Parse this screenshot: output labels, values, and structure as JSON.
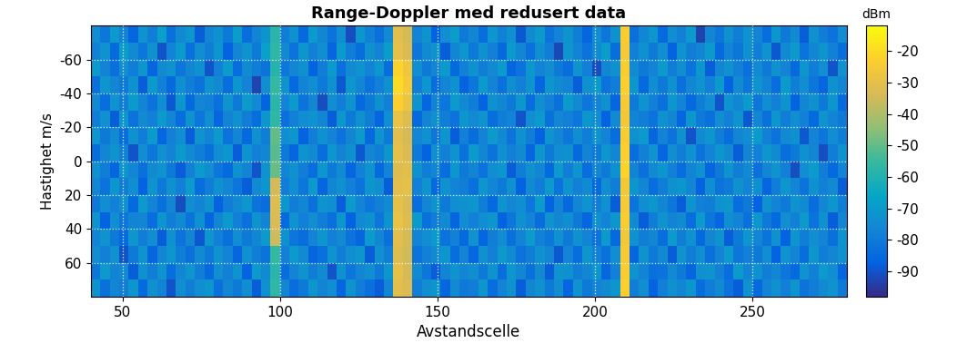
{
  "chart_data": {
    "type": "heatmap",
    "title": "Range-Doppler med redusert data",
    "x_label": "Avstandscelle",
    "y_label": "Hastighet m/s",
    "xlim": [
      40,
      280
    ],
    "xticks": [
      50,
      100,
      150,
      200,
      250
    ],
    "ylim": [
      80,
      -80
    ],
    "yticks": [
      -60,
      -40,
      -20,
      0,
      20,
      40,
      60
    ],
    "grid": true,
    "x_edges": [
      40,
      43,
      46,
      49,
      52,
      55,
      58,
      61,
      64,
      67,
      70,
      73,
      76,
      79,
      82,
      85,
      88,
      91,
      94,
      97,
      100,
      103,
      106,
      109,
      112,
      115,
      118,
      121,
      124,
      127,
      130,
      133,
      136,
      139,
      142,
      145,
      148,
      151,
      154,
      157,
      160,
      163,
      166,
      169,
      172,
      175,
      178,
      181,
      184,
      187,
      190,
      193,
      196,
      199,
      202,
      205,
      208,
      211,
      214,
      217,
      220,
      223,
      226,
      229,
      232,
      235,
      238,
      241,
      244,
      247,
      250,
      253,
      256,
      259,
      262,
      265,
      268,
      271,
      274,
      277,
      280
    ],
    "y_edges": [
      -80,
      -70,
      -60,
      -50,
      -40,
      -30,
      -20,
      -10,
      0,
      10,
      20,
      30,
      40,
      50,
      60,
      70,
      80
    ],
    "colorbar": {
      "label": "dBm",
      "lim": [
        -98,
        -12
      ],
      "ticks": [
        -90,
        -80,
        -70,
        -60,
        -50,
        -40,
        -30,
        -20
      ]
    },
    "cells": [
      [
        -74,
        -81,
        -70,
        -77,
        -86,
        -72,
        -79,
        -68,
        -83,
        -75,
        -71,
        -88,
        -76,
        -73,
        -80,
        -69,
        -84,
        -77,
        -72,
        -58,
        -79,
        -73,
        -85,
        -70,
        -76,
        -82,
        -74,
        -91,
        -71,
        -78,
        -83,
        -75,
        -31,
        -34,
        -77,
        -72,
        -87,
        -74,
        -69,
        -80,
        -76,
        -84,
        -71,
        -78,
        -73,
        -89,
        -75,
        -70,
        -82,
        -77,
        -72,
        -79,
        -86,
        -74,
        -81,
        -73,
        -24,
        -83,
        -76,
        -71,
        -85,
        -74,
        -78,
        -70,
        -93,
        -76,
        -81,
        -73,
        -79,
        -72,
        -77,
        -84,
        -71,
        -80,
        -75,
        -88,
        -73,
        -79,
        -82,
        -74
      ],
      [
        -78,
        -72,
        -85,
        -69,
        -75,
        -81,
        -73,
        -90,
        -77,
        -70,
        -83,
        -74,
        -79,
        -71,
        -87,
        -76,
        -72,
        -80,
        -68,
        -57,
        -75,
        -82,
        -71,
        -78,
        -74,
        -86,
        -70,
        -79,
        -84,
        -73,
        -77,
        -69,
        -30,
        -33,
        -81,
        -75,
        -72,
        -88,
        -76,
        -71,
        -80,
        -73,
        -78,
        -85,
        -70,
        -76,
        -83,
        -74,
        -79,
        -92,
        -71,
        -77,
        -82,
        -75,
        -69,
        -84,
        -25,
        -78,
        -73,
        -80,
        -74,
        -87,
        -72,
        -79,
        -76,
        -70,
        -85,
        -77,
        -81,
        -73,
        -79,
        -72,
        -89,
        -75,
        -70,
        -82,
        -76,
        -71,
        -78,
        -84
      ],
      [
        -70,
        -77,
        -83,
        -74,
        -79,
        -71,
        -86,
        -75,
        -72,
        -81,
        -76,
        -73,
        -90,
        -78,
        -70,
        -84,
        -75,
        -79,
        -82,
        -59,
        -81,
        -76,
        -73,
        -87,
        -79,
        -70,
        -83,
        -75,
        -72,
        -77,
        -71,
        -84,
        -22,
        -27,
        -74,
        -80,
        -76,
        -70,
        -85,
        -78,
        -73,
        -79,
        -75,
        -70,
        -86,
        -82,
        -71,
        -77,
        -74,
        -80,
        -84,
        -72,
        -78,
        -91,
        -76,
        -73,
        -24,
        -75,
        -80,
        -77,
        -70,
        -79,
        -74,
        -82,
        -71,
        -88,
        -76,
        -73,
        -78,
        -83,
        -75,
        -80,
        -73,
        -77,
        -85,
        -71,
        -79,
        -74,
        -90,
        -72
      ],
      [
        -83,
        -71,
        -76,
        -80,
        -73,
        -88,
        -70,
        -78,
        -85,
        -74,
        -79,
        -82,
        -72,
        -75,
        -84,
        -71,
        -77,
        -93,
        -74,
        -56,
        -72,
        -85,
        -77,
        -74,
        -80,
        -73,
        -89,
        -71,
        -76,
        -82,
        -78,
        -73,
        -20,
        -25,
        -79,
        -71,
        -84,
        -76,
        -73,
        -87,
        -81,
        -70,
        -77,
        -83,
        -74,
        -78,
        -72,
        -86,
        -71,
        -75,
        -77,
        -88,
        -73,
        -70,
        -82,
        -79,
        -23,
        -71,
        -85,
        -74,
        -80,
        -73,
        -83,
        -76,
        -72,
        -78,
        -70,
        -87,
        -75,
        -81,
        -72,
        -77,
        -84,
        -70,
        -79,
        -74,
        -81,
        -86,
        -73,
        -76
      ],
      [
        -75,
        -84,
        -72,
        -79,
        -70,
        -77,
        -82,
        -74,
        -89,
        -71,
        -85,
        -76,
        -78,
        -83,
        -72,
        -80,
        -70,
        -75,
        -87,
        -58,
        -77,
        -70,
        -82,
        -76,
        -91,
        -74,
        -79,
        -72,
        -85,
        -80,
        -73,
        -78,
        -23,
        -28,
        -72,
        -86,
        -77,
        -81,
        -70,
        -75,
        -79,
        -87,
        -73,
        -76,
        -80,
        -71,
        -84,
        -74,
        -78,
        -83,
        -70,
        -75,
        -81,
        -77,
        -73,
        -86,
        -25,
        -80,
        -72,
        -78,
        -83,
        -71,
        -77,
        -85,
        -79,
        -74,
        -90,
        -72,
        -76,
        -70,
        -81,
        -74,
        -78,
        -72,
        -87,
        -76,
        -73,
        -80,
        -71,
        -85
      ],
      [
        -79,
        -73,
        -88,
        -71,
        -82,
        -75,
        -78,
        -70,
        -76,
        -84,
        -72,
        -81,
        -74,
        -86,
        -77,
        -73,
        -79,
        -84,
        -71,
        -57,
        -83,
        -78,
        -74,
        -72,
        -76,
        -88,
        -71,
        -80,
        -73,
        -79,
        -86,
        -74,
        -29,
        -32,
        -85,
        -77,
        -73,
        -79,
        -82,
        -71,
        -75,
        -72,
        -84,
        -79,
        -77,
        -90,
        -74,
        -70,
        -83,
        -76,
        -78,
        -81,
        -71,
        -74,
        -87,
        -75,
        -26,
        -77,
        -79,
        -82,
        -73,
        -76,
        -86,
        -71,
        -80,
        -83,
        -74,
        -78,
        -72,
        -89,
        -76,
        -83,
        -71,
        -79,
        -74,
        -78,
        -85,
        -72,
        -77,
        -80
      ],
      [
        -71,
        -80,
        -75,
        -84,
        -73,
        -79,
        -70,
        -86,
        -78,
        -74,
        -88,
        -72,
        -77,
        -70,
        -82,
        -76,
        -85,
        -73,
        -79,
        -50,
        -74,
        -71,
        -87,
        -79,
        -73,
        -77,
        -82,
        -76,
        -70,
        -85,
        -72,
        -80,
        -31,
        -34,
        -76,
        -73,
        -81,
        -71,
        -88,
        -78,
        -84,
        -77,
        -70,
        -75,
        -82,
        -73,
        -79,
        -87,
        -72,
        -76,
        -81,
        -74,
        -79,
        -72,
        -77,
        -84,
        -24,
        -73,
        -70,
        -86,
        -77,
        -82,
        -73,
        -90,
        -75,
        -71,
        -79,
        -84,
        -76,
        -74,
        -70,
        -78,
        -82,
        -75,
        -73,
        -89,
        -77,
        -81,
        -74,
        -79
      ],
      [
        -84,
        -76,
        -72,
        -78,
        -90,
        -74,
        -81,
        -73,
        -77,
        -70,
        -75,
        -79,
        -83,
        -74,
        -71,
        -88,
        -72,
        -78,
        -76,
        -51,
        -80,
        -86,
        -72,
        -75,
        -84,
        -71,
        -77,
        -73,
        -89,
        -76,
        -79,
        -71,
        -30,
        -33,
        -80,
        -87,
        -74,
        -78,
        -72,
        -83,
        -70,
        -76,
        -82,
        -73,
        -78,
        -75,
        -86,
        -71,
        -80,
        -74,
        -73,
        -85,
        -77,
        -80,
        -71,
        -76,
        -23,
        -84,
        -78,
        -72,
        -86,
        -74,
        -79,
        -73,
        -82,
        -77,
        -71,
        -75,
        -88,
        -76,
        -78,
        -71,
        -75,
        -84,
        -80,
        -73,
        -76,
        -91,
        -79,
        -72
      ],
      [
        -73,
        -79,
        -86,
        -71,
        -76,
        -83,
        -75,
        -72,
        -80,
        -88,
        -78,
        -70,
        -74,
        -81,
        -85,
        -73,
        -77,
        -90,
        -72,
        -49,
        -76,
        -73,
        -79,
        -84,
        -71,
        -80,
        -75,
        -86,
        -78,
        -72,
        -85,
        -77,
        -32,
        -31,
        -73,
        -79,
        -76,
        -84,
        -71,
        -80,
        -77,
        -82,
        -74,
        -71,
        -88,
        -79,
        -73,
        -76,
        -85,
        -70,
        -79,
        -72,
        -84,
        -76,
        -80,
        -73,
        -22,
        -77,
        -83,
        -75,
        -71,
        -78,
        -84,
        -77,
        -73,
        -86,
        -80,
        -72,
        -79,
        -75,
        -83,
        -76,
        -72,
        -78,
        -91,
        -74,
        -70,
        -79,
        -85,
        -77
      ],
      [
        -76,
        -82,
        -71,
        -79,
        -74,
        -87,
        -72,
        -80,
        -73,
        -78,
        -70,
        -84,
        -79,
        -73,
        -76,
        -81,
        -88,
        -75,
        -71,
        -34,
        -79,
        -74,
        -81,
        -70,
        -86,
        -76,
        -73,
        -78,
        -82,
        -71,
        -74,
        -88,
        -31,
        -30,
        -78,
        -72,
        -85,
        -73,
        -77,
        -79,
        -83,
        -71,
        -76,
        -80,
        -73,
        -87,
        -75,
        -79,
        -70,
        -82,
        -72,
        -78,
        -75,
        -85,
        -74,
        -79,
        -26,
        -71,
        -76,
        -84,
        -79,
        -73,
        -71,
        -76,
        -87,
        -74,
        -82,
        -80,
        -73,
        -77,
        -74,
        -86,
        -79,
        -71,
        -76,
        -82,
        -73,
        -78,
        -75,
        -88
      ],
      [
        -80,
        -74,
        -78,
        -73,
        -85,
        -70,
        -77,
        -83,
        -76,
        -91,
        -74,
        -77,
        -72,
        -87,
        -79,
        -75,
        -71,
        -82,
        -84,
        -32,
        -71,
        -79,
        -76,
        -83,
        -72,
        -74,
        -88,
        -70,
        -77,
        -81,
        -78,
        -75,
        -30,
        -33,
        -84,
        -76,
        -72,
        -80,
        -74,
        -73,
        -71,
        -79,
        -85,
        -72,
        -76,
        -74,
        -81,
        -70,
        -87,
        -77,
        -85,
        -76,
        -72,
        -79,
        -73,
        -88,
        -25,
        -82,
        -74,
        -71,
        -76,
        -81,
        -88,
        -72,
        -78,
        -79,
        -73,
        -71,
        -84,
        -80,
        -87,
        -73,
        -77,
        -80,
        -72,
        -75,
        -84,
        -76,
        -71,
        -79
      ],
      [
        -72,
        -87,
        -74,
        -81,
        -77,
        -76,
        -84,
        -71,
        -79,
        -75,
        -82,
        -73,
        -86,
        -76,
        -70,
        -78,
        -83,
        -72,
        -77,
        -33,
        -85,
        -72,
        -78,
        -74,
        -79,
        -83,
        -71,
        -87,
        -75,
        -73,
        -81,
        -72,
        -29,
        -32,
        -70,
        -83,
        -79,
        -75,
        -86,
        -74,
        -78,
        -74,
        -71,
        -87,
        -81,
        -73,
        -77,
        -84,
        -72,
        -76,
        -74,
        -80,
        -86,
        -73,
        -77,
        -71,
        -24,
        -75,
        -88,
        -79,
        -72,
        -77,
        -75,
        -84,
        -70,
        -81,
        -86,
        -74,
        -77,
        -83,
        -71,
        -80,
        -85,
        -74,
        -78,
        -70,
        -82,
        -73,
        -88,
        -76
      ],
      [
        -77,
        -72,
        -80,
        -85,
        -71,
        -79,
        -74,
        -88,
        -73,
        -82,
        -76,
        -89,
        -71,
        -78,
        -83,
        -74,
        -80,
        -76,
        -70,
        -35,
        -73,
        -81,
        -84,
        -77,
        -71,
        -78,
        -75,
        -82,
        -86,
        -70,
        -76,
        -83,
        -31,
        -34,
        -77,
        -74,
        -70,
        -82,
        -78,
        -85,
        -72,
        -86,
        -79,
        -74,
        -83,
        -77,
        -70,
        -78,
        -81,
        -73,
        -80,
        -73,
        -77,
        -82,
        -70,
        -85,
        -26,
        -73,
        -79,
        -76,
        -84,
        -70,
        -79,
        -73,
        -85,
        -76,
        -72,
        -88,
        -80,
        -71,
        -76,
        -82,
        -73,
        -87,
        -71,
        -79,
        -74,
        -77,
        -83,
        -72
      ],
      [
        -74,
        -78,
        -73,
        -90,
        -80,
        -72,
        -86,
        -76,
        -71,
        -79,
        -83,
        -75,
        -80,
        -72,
        -77,
        -86,
        -73,
        -79,
        -82,
        -56,
        -78,
        -70,
        -75,
        -86,
        -83,
        -72,
        -79,
        -74,
        -71,
        -88,
        -73,
        -79,
        -32,
        -35,
        -82,
        -78,
        -75,
        -71,
        -84,
        -77,
        -86,
        -73,
        -78,
        -70,
        -75,
        -82,
        -79,
        -73,
        -76,
        -89,
        -77,
        -84,
        -71,
        -78,
        -83,
        -74,
        -25,
        -86,
        -72,
        -80,
        -75,
        -88,
        -72,
        -79,
        -74,
        -83,
        -77,
        -70,
        -81,
        -78,
        -80,
        -74,
        -87,
        -72,
        -77,
        -84,
        -71,
        -79,
        -76,
        -73
      ],
      [
        -81,
        -70,
        -77,
        -75,
        -88,
        -73,
        -79,
        -72,
        -84,
        -76,
        -71,
        -79,
        -85,
        -74,
        -78,
        -72,
        -87,
        -70,
        -75,
        -58,
        -84,
        -77,
        -72,
        -79,
        -75,
        -90,
        -73,
        -81,
        -76,
        -74,
        -80,
        -71,
        -30,
        -34,
        -75,
        -81,
        -88,
        -77,
        -72,
        -76,
        -74,
        -80,
        -72,
        -84,
        -71,
        -76,
        -83,
        -75,
        -88,
        -72,
        -73,
        -79,
        -76,
        -71,
        -86,
        -78,
        -24,
        -72,
        -77,
        -83,
        -82,
        -75,
        -80,
        -86,
        -73,
        -72,
        -78,
        -84,
        -70,
        -77,
        -73,
        -79,
        -76,
        -81,
        -85,
        -72,
        -78,
        -70,
        -74,
        -86
      ],
      [
        -72,
        -83,
        -76,
        -79,
        -71,
        -85,
        -73,
        -77,
        -90,
        -74,
        -79,
        -74,
        -71,
        -83,
        -76,
        -80,
        -74,
        -88,
        -73,
        -57,
        -76,
        -84,
        -80,
        -71,
        -77,
        -74,
        -86,
        -72,
        -79,
        -83,
        -88,
        -76,
        -31,
        -33,
        -79,
        -74,
        -71,
        -86,
        -75,
        -80,
        -79,
        -71,
        -84,
        -77,
        -72,
        -88,
        -76,
        -73,
        -80,
        -74,
        -86,
        -72,
        -80,
        -77,
        -75,
        -71,
        -23,
        -79,
        -74,
        -87,
        -78,
        -73,
        -76,
        -71,
        -84,
        -79,
        -75,
        -82,
        -88,
        -72,
        -85,
        -77,
        -73,
        -78,
        -71,
        -82,
        -79,
        -75,
        -72,
        -80
      ]
    ]
  }
}
